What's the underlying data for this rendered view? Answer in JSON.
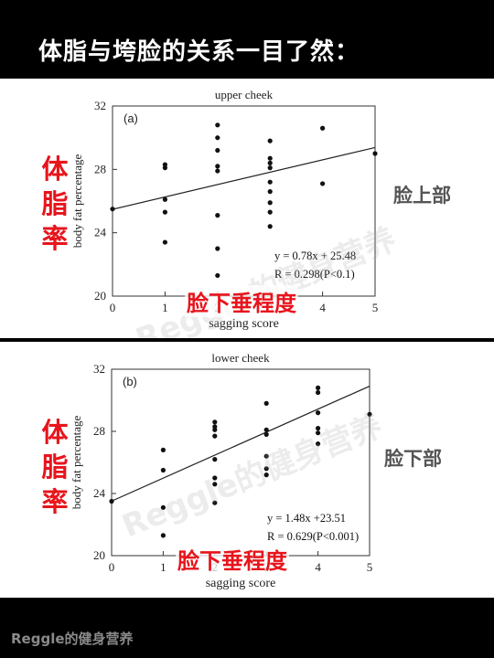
{
  "banner": {
    "title": "体脂与垮脸的关系一目了然："
  },
  "annotations": {
    "body_fat_chars": [
      "体",
      "脂",
      "率"
    ],
    "sagging_degree": "脸下垂程度",
    "upper_region": "脸上部",
    "lower_region": "脸下部",
    "watermark": "Reggle的健身营养"
  },
  "footer": {
    "brand": "Reggle的健身营养"
  },
  "colors": {
    "annotation_red": "#e8141c",
    "point": "#111111",
    "background": "#000000"
  },
  "chart_data": [
    {
      "type": "scatter",
      "panel_label": "(a)",
      "title": "upper cheek",
      "xlabel": "sagging score",
      "ylabel": "body fat percentage",
      "xlim": [
        0,
        5
      ],
      "ylim": [
        20,
        32
      ],
      "xticks": [
        "0",
        "1",
        "2",
        "3",
        "4",
        "5"
      ],
      "yticks": [
        "20",
        "24",
        "28",
        "32"
      ],
      "grid": false,
      "points": [
        [
          0,
          25.5
        ],
        [
          1,
          28.3
        ],
        [
          1,
          28.1
        ],
        [
          1,
          26.1
        ],
        [
          1,
          25.3
        ],
        [
          1,
          23.4
        ],
        [
          2,
          30.8
        ],
        [
          2,
          30.0
        ],
        [
          2,
          29.2
        ],
        [
          2,
          28.2
        ],
        [
          2,
          27.9
        ],
        [
          2,
          25.1
        ],
        [
          2,
          23.0
        ],
        [
          2,
          21.3
        ],
        [
          3,
          29.8
        ],
        [
          3,
          28.7
        ],
        [
          3,
          28.4
        ],
        [
          3,
          28.1
        ],
        [
          3,
          27.2
        ],
        [
          3,
          26.6
        ],
        [
          3,
          25.9
        ],
        [
          3,
          25.3
        ],
        [
          3,
          24.4
        ],
        [
          4,
          30.6
        ],
        [
          4,
          27.1
        ],
        [
          5,
          29.0
        ]
      ],
      "fit": {
        "slope": 0.78,
        "intercept": 25.48
      },
      "equation": "y = 0.78x + 25.48",
      "r_text": "R = 0.298(P<0.1)"
    },
    {
      "type": "scatter",
      "panel_label": "(b)",
      "title": "lower cheek",
      "xlabel": "sagging score",
      "ylabel": "body fat percentage",
      "xlim": [
        0,
        5
      ],
      "ylim": [
        20,
        32
      ],
      "xticks": [
        "0",
        "1",
        "2",
        "3",
        "4",
        "5"
      ],
      "yticks": [
        "20",
        "24",
        "28",
        "32"
      ],
      "grid": false,
      "points": [
        [
          0,
          23.5
        ],
        [
          1,
          26.8
        ],
        [
          1,
          25.5
        ],
        [
          1,
          23.1
        ],
        [
          1,
          21.3
        ],
        [
          2,
          28.6
        ],
        [
          2,
          28.3
        ],
        [
          2,
          28.1
        ],
        [
          2,
          27.7
        ],
        [
          2,
          26.2
        ],
        [
          2,
          25.0
        ],
        [
          2,
          24.6
        ],
        [
          2,
          23.4
        ],
        [
          3,
          29.8
        ],
        [
          3,
          28.1
        ],
        [
          3,
          27.8
        ],
        [
          3,
          26.4
        ],
        [
          3,
          25.6
        ],
        [
          3,
          25.2
        ],
        [
          4,
          30.8
        ],
        [
          4,
          30.5
        ],
        [
          4,
          29.2
        ],
        [
          4,
          28.2
        ],
        [
          4,
          27.9
        ],
        [
          4,
          27.2
        ],
        [
          5,
          29.1
        ]
      ],
      "fit": {
        "slope": 1.48,
        "intercept": 23.51
      },
      "equation": "y = 1.48x +23.51",
      "r_text": "R = 0.629(P<0.001)"
    }
  ]
}
